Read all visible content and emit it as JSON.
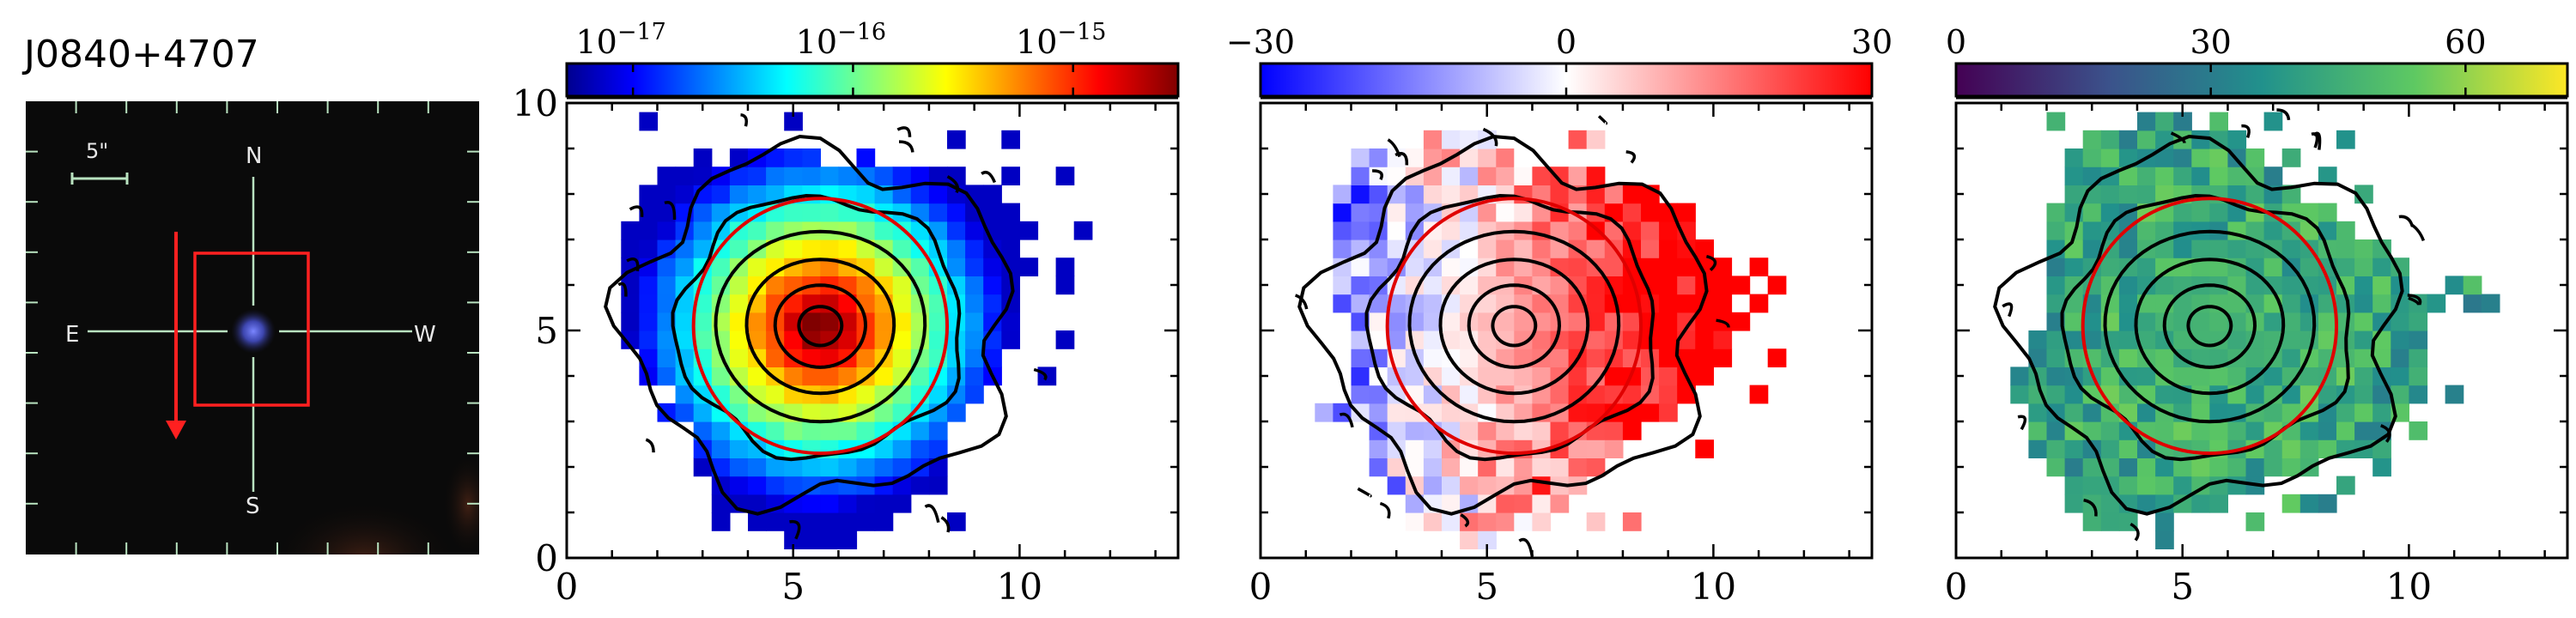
{
  "title": "J0840+4707",
  "thumbnail": {
    "compass": {
      "north": "N",
      "south": "S",
      "east": "E",
      "west": "W"
    },
    "scale_bar_label": "5\"",
    "colors": {
      "background": "#0a0a0a",
      "crosshair": "#b9e3c0",
      "box": "#ff2020",
      "arrow": "#ff2020",
      "source": "#5a6cff"
    }
  },
  "chart_data": [
    {
      "type": "heatmap",
      "title": "",
      "xlabel": "",
      "ylabel": "",
      "xlim": [
        0,
        13.5
      ],
      "ylim": [
        0,
        10
      ],
      "xticks": [
        "0",
        "5",
        "10"
      ],
      "yticks": [
        "0",
        "5",
        "10"
      ],
      "colorbar": {
        "scale": "log",
        "colormap": "jet",
        "range": [
          5e-18,
          3e-15
        ],
        "tick_values": [
          1e-17,
          1e-16,
          1e-15
        ],
        "tick_labels": [
          "10^-17",
          "10^-16",
          "10^-15"
        ]
      },
      "center": [
        5.6,
        5.1
      ],
      "contours": "black",
      "circle": {
        "color": "red",
        "center": [
          5.6,
          5.1
        ],
        "radius": 2.8
      }
    },
    {
      "type": "heatmap",
      "title": "",
      "xlabel": "",
      "ylabel": "",
      "xlim": [
        0,
        13.5
      ],
      "ylim": [
        0,
        10
      ],
      "xticks": [
        "0",
        "5",
        "10"
      ],
      "colorbar": {
        "scale": "linear",
        "colormap": "bwr",
        "range": [
          -30,
          30
        ],
        "tick_values": [
          -30,
          0,
          30
        ],
        "tick_labels": [
          "−30",
          "0",
          "30"
        ]
      },
      "center": [
        5.6,
        5.1
      ],
      "contours": "black",
      "circle": {
        "color": "red",
        "center": [
          5.6,
          5.1
        ],
        "radius": 2.8
      }
    },
    {
      "type": "heatmap",
      "title": "",
      "xlabel": "",
      "ylabel": "",
      "xlim": [
        0,
        13.5
      ],
      "ylim": [
        0,
        10
      ],
      "xticks": [
        "0",
        "5",
        "10"
      ],
      "colorbar": {
        "scale": "linear",
        "colormap": "viridis",
        "range": [
          0,
          72
        ],
        "tick_values": [
          0,
          30,
          60
        ],
        "tick_labels": [
          "0",
          "30",
          "60"
        ]
      },
      "center": [
        5.6,
        5.1
      ],
      "contours": "black",
      "circle": {
        "color": "red",
        "center": [
          5.6,
          5.1
        ],
        "radius": 2.8
      }
    }
  ]
}
